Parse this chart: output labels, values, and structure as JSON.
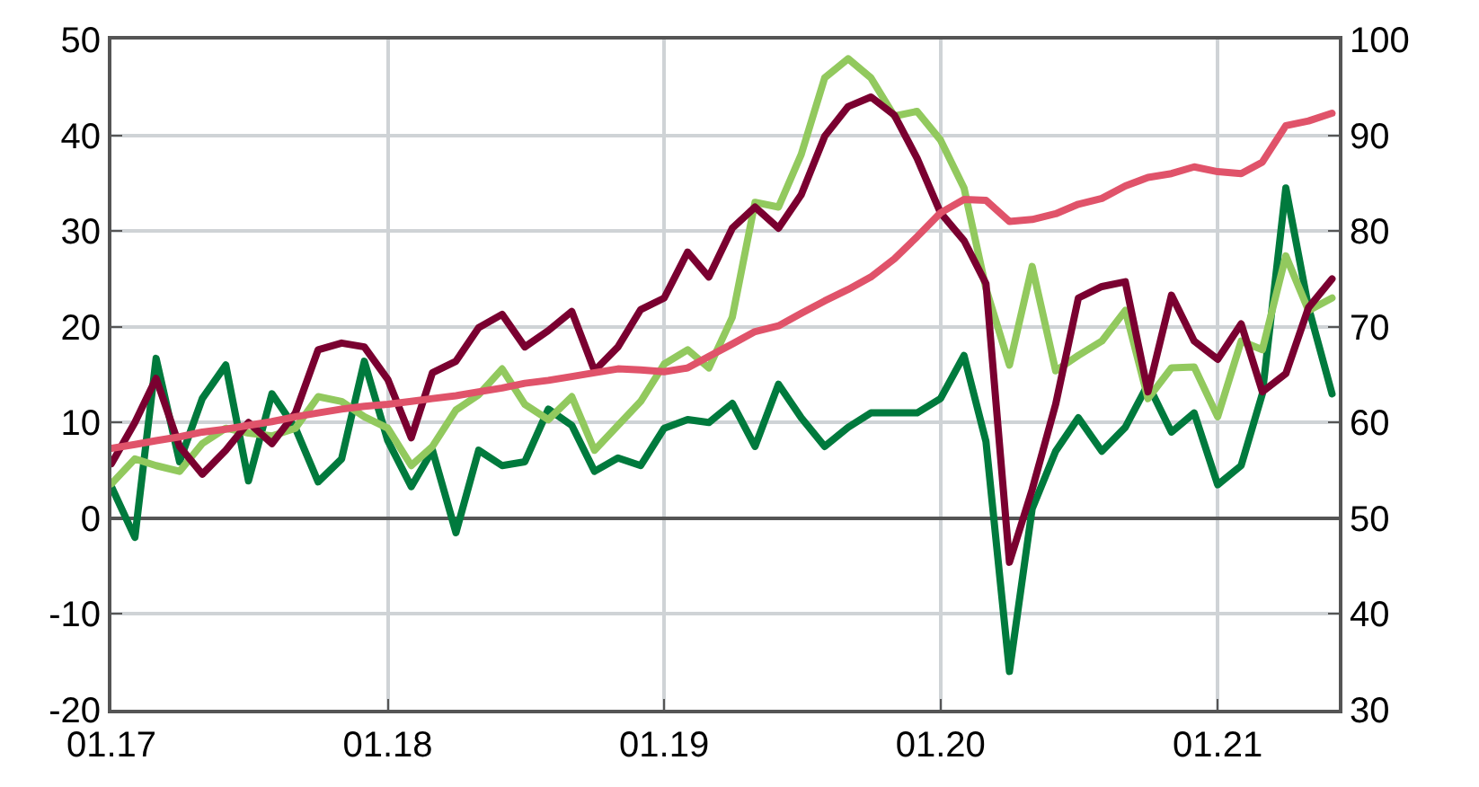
{
  "chart_data": {
    "type": "line",
    "x": [
      "2017-01",
      "2017-02",
      "2017-03",
      "2017-04",
      "2017-05",
      "2017-06",
      "2017-07",
      "2017-08",
      "2017-09",
      "2017-10",
      "2017-11",
      "2017-12",
      "2018-01",
      "2018-02",
      "2018-03",
      "2018-04",
      "2018-05",
      "2018-06",
      "2018-07",
      "2018-08",
      "2018-09",
      "2018-10",
      "2018-11",
      "2018-12",
      "2019-01",
      "2019-02",
      "2019-03",
      "2019-04",
      "2019-05",
      "2019-06",
      "2019-07",
      "2019-08",
      "2019-09",
      "2019-10",
      "2019-11",
      "2019-12",
      "2020-01",
      "2020-02",
      "2020-03",
      "2020-04",
      "2020-05",
      "2020-06",
      "2020-07",
      "2020-08",
      "2020-09",
      "2020-10",
      "2020-11",
      "2020-12",
      "2021-01",
      "2021-02",
      "2021-03",
      "2021-04",
      "2021-05",
      "2021-06"
    ],
    "series": [
      {
        "color": "#e0536a",
        "axis": "y2",
        "values": [
          57.3,
          57.7,
          58.1,
          58.5,
          59,
          59.3,
          59.7,
          60.1,
          60.6,
          61,
          61.4,
          61.7,
          61.9,
          62.2,
          62.5,
          62.8,
          63.2,
          63.6,
          64.1,
          64.4,
          64.8,
          65.2,
          65.6,
          65.5,
          65.3,
          65.7,
          66.9,
          68.2,
          69.5,
          70.1,
          71.4,
          72.7,
          73.9,
          75.2,
          77.1,
          79.4,
          81.9,
          83.3,
          83.2,
          81,
          81.2,
          81.8,
          82.8,
          83.4,
          84.7,
          85.6,
          86,
          86.7,
          86.2,
          86,
          87.2,
          91,
          91.5,
          92.3
        ]
      },
      {
        "color": "#007a3d",
        "values": [
          3.3,
          -2,
          16.7,
          5.9,
          12.5,
          16,
          3.9,
          13,
          9.4,
          3.8,
          6.2,
          16.4,
          8.1,
          3.3,
          7.1,
          -1.5,
          7.1,
          5.5,
          5.9,
          11.4,
          9.7,
          4.9,
          6.3,
          5.5,
          9.4,
          10.3,
          10,
          12,
          7.5,
          14,
          10.5,
          7.5,
          9.5,
          11,
          11,
          11,
          12.5,
          17,
          8,
          -16,
          1,
          7,
          10.5,
          7,
          9.5,
          14,
          9,
          11,
          3.5,
          5.5,
          13,
          34.5,
          22,
          13
        ]
      },
      {
        "color": "#92c95e",
        "values": [
          3.6,
          6.2,
          5.5,
          4.9,
          7.8,
          9.4,
          8.9,
          8.6,
          9.4,
          12.7,
          12.2,
          10.6,
          9.4,
          5.5,
          7.5,
          11.3,
          12.9,
          15.6,
          11.9,
          10.3,
          12.7,
          7.1,
          9.7,
          12.2,
          16.1,
          17.6,
          15.7,
          21,
          33,
          32.5,
          38,
          46,
          48,
          46,
          42,
          42.5,
          39.5,
          34.5,
          24,
          16,
          26.3,
          15.4,
          17,
          18.5,
          21.7,
          12.5,
          15.7,
          15.8,
          10.6,
          18.5,
          17.6,
          27.4,
          21.7,
          23
        ]
      },
      {
        "color": "#7a0030",
        "values": [
          5.7,
          10,
          14.6,
          7.5,
          4.6,
          7.1,
          10,
          7.8,
          11,
          17.6,
          18.3,
          17.9,
          14.5,
          8.4,
          15.2,
          16.4,
          19.9,
          21.3,
          17.9,
          19.6,
          21.6,
          15.4,
          17.9,
          21.8,
          23,
          27.8,
          25.2,
          30.3,
          32.5,
          30.3,
          33.8,
          39.9,
          43,
          44,
          42.1,
          37.6,
          31.9,
          29,
          24.5,
          -4.6,
          3,
          11.9,
          23,
          24.2,
          24.7,
          13.2,
          23.3,
          18.5,
          16.6,
          20.3,
          13.2,
          15.1,
          22,
          25
        ]
      }
    ],
    "xlim": [
      "2017-01",
      "2021-06-10"
    ],
    "xticks": [
      {
        "value": "2017-01",
        "label": "01.17"
      },
      {
        "value": "2018-01",
        "label": "01.18"
      },
      {
        "value": "2019-01",
        "label": "01.19"
      },
      {
        "value": "2020-01",
        "label": "01.20"
      },
      {
        "value": "2021-01",
        "label": "01.21"
      }
    ],
    "ylim": [
      -20,
      50
    ],
    "yticks": [
      -20,
      -10,
      0,
      10,
      20,
      30,
      40,
      50
    ],
    "y2lim": [
      30,
      100
    ],
    "y2ticks": [
      30,
      40,
      50,
      60,
      70,
      80,
      90,
      100
    ],
    "grid": true
  }
}
